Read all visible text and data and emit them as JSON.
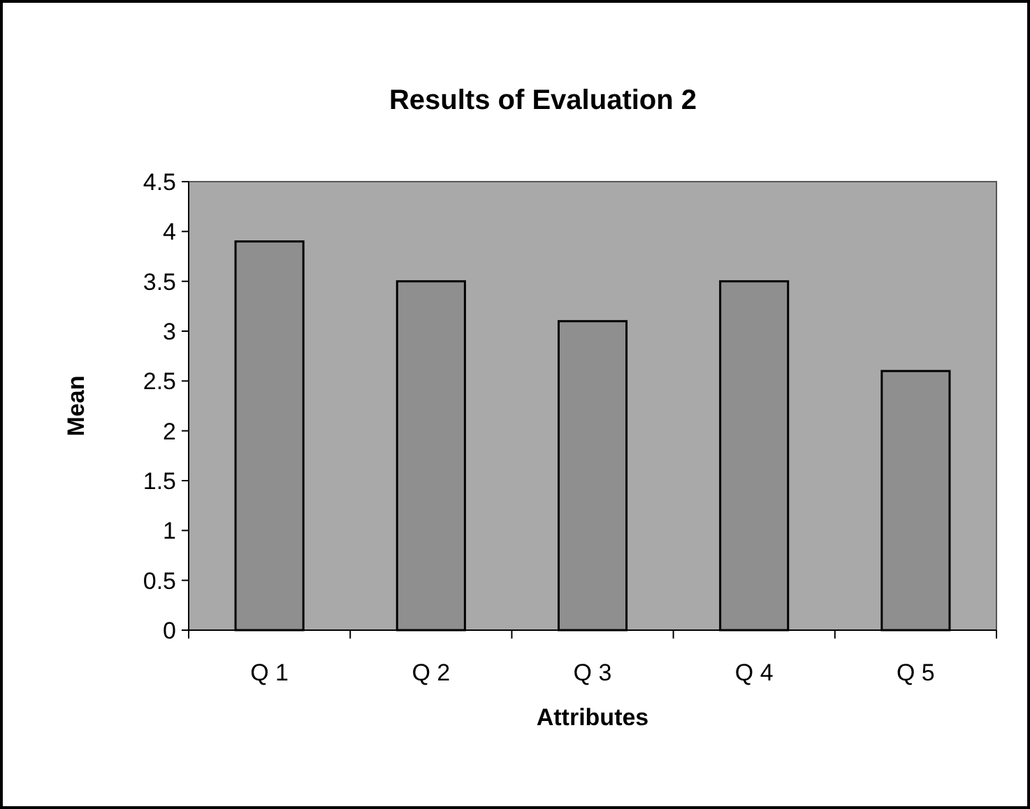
{
  "chart_data": {
    "type": "bar",
    "title": "Results of Evaluation 2",
    "xlabel": "Attributes",
    "ylabel": "Mean",
    "categories": [
      "Q 1",
      "Q 2",
      "Q 3",
      "Q 4",
      "Q 5"
    ],
    "values": [
      3.9,
      3.5,
      3.1,
      3.5,
      2.6
    ],
    "color": "#8f8f8f",
    "ylim": [
      0,
      4.5
    ],
    "yticks": [
      0,
      0.5,
      1,
      1.5,
      2,
      2.5,
      3,
      3.5,
      4,
      4.5
    ],
    "grid": false
  }
}
